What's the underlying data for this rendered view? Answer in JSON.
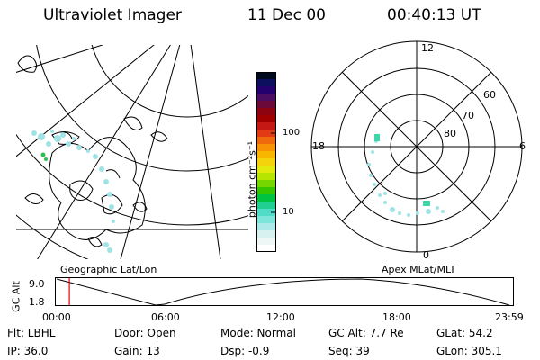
{
  "header": {
    "title": "Ultraviolet Imager",
    "date": "11 Dec 00",
    "time": "00:40:13 UT"
  },
  "colorbar": {
    "label_html": "photon cm⁻²s⁻¹",
    "ticks": [
      "100",
      "10"
    ],
    "colors": [
      "#000a1e",
      "#0c0f5e",
      "#24006f",
      "#4b0d62",
      "#6b0a3a",
      "#8d0310",
      "#a00000",
      "#c51815",
      "#e23a14",
      "#ef6a0c",
      "#f79304",
      "#f8b600",
      "#f4d20c",
      "#e2ea0d",
      "#b5e500",
      "#75d600",
      "#35c600",
      "#00c441",
      "#22cf92",
      "#51dcc7",
      "#7ee5da",
      "#ade9e8",
      "#d7f0f0",
      "#eef6f6",
      "#ffffff"
    ]
  },
  "left_panel": {
    "caption": "Geographic Lat/Lon"
  },
  "right_panel": {
    "caption": "Apex MLat/MLT",
    "hours": [
      "12",
      "18",
      "6",
      "0"
    ],
    "latitudes": [
      "60",
      "70",
      "80"
    ]
  },
  "timeline": {
    "ylabel": "GC Alt",
    "yticks": [
      "9.0",
      "1.8"
    ],
    "xticks": [
      "00:00",
      "06:00",
      "12:00",
      "18:00",
      "23:59"
    ],
    "marker_hour": 0.67
  },
  "info": {
    "flt": "Flt: LBHL",
    "door": "Door: Open",
    "mode": "Mode: Normal",
    "gc_alt": "GC Alt: 7.7 Re",
    "glat": "GLat:  54.2",
    "ip": "IP: 36.0",
    "gain": "Gain: 13",
    "dsp": "Dsp:   -0.9",
    "seq": "Seq: 39",
    "glon": "GLon: 305.1"
  },
  "colors": {
    "aurora_cyan": "#9fe3e6",
    "aurora_teal": "#3dd6a8",
    "aurora_green": "#2fbf4e",
    "marker_red": "#e00000"
  }
}
